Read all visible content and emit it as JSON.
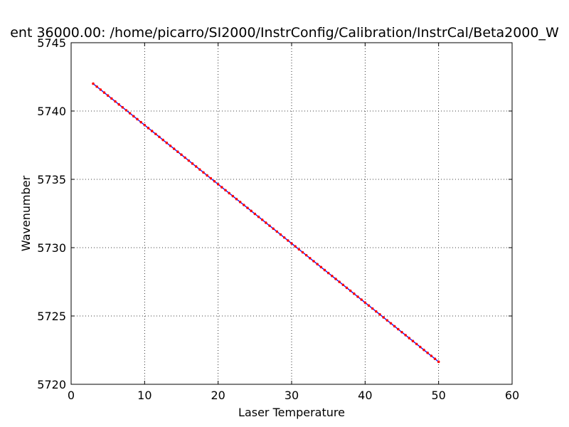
{
  "chart_data": {
    "type": "line",
    "title": "ent 36000.00: /home/picarro/SI2000/InstrConfig/Calibration/InstrCal/Beta2000_W",
    "xlabel": "Laser Temperature",
    "ylabel": "Wavenumber",
    "xlim": [
      0,
      60
    ],
    "ylim": [
      5720,
      5745
    ],
    "xticks": [
      0,
      10,
      20,
      30,
      40,
      50,
      60
    ],
    "yticks": [
      5720,
      5725,
      5730,
      5735,
      5740,
      5745
    ],
    "xtick_labels": [
      "0",
      "10",
      "20",
      "30",
      "40",
      "50",
      "60"
    ],
    "ytick_labels": [
      "5720",
      "5725",
      "5730",
      "5735",
      "5740",
      "5745"
    ],
    "grid": true,
    "series": [
      {
        "x_start": 3.0,
        "x_end": 50.0,
        "y_start": 5742.0,
        "y_end": 5721.65,
        "num_points": 95,
        "line_color": "#0000ff",
        "marker_color": "#ff0000"
      }
    ]
  }
}
